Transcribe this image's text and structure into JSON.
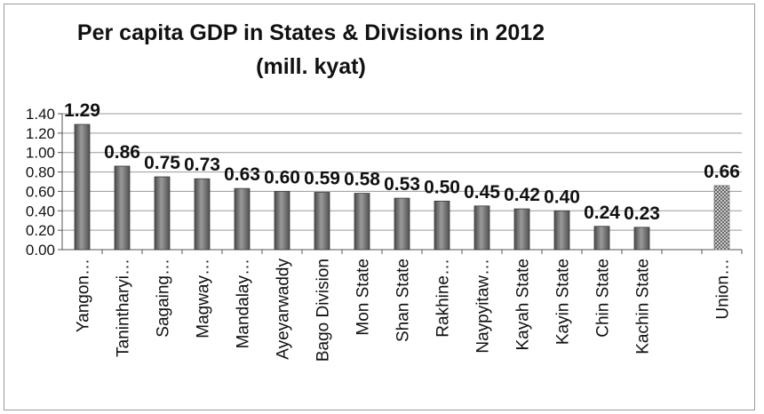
{
  "chart_data": {
    "type": "bar",
    "title": "Per capita GDP in States & Divisions  in 2012",
    "subtitle": "(mill. kyat)",
    "xlabel": "",
    "ylabel": "",
    "ylim": [
      0,
      1.4
    ],
    "yticks": [
      "0.00",
      "0.20",
      "0.40",
      "0.60",
      "0.80",
      "1.00",
      "1.20",
      "1.40"
    ],
    "grid": true,
    "legend": "none",
    "categories": [
      "Yangon…",
      "Tanintharyi…",
      "Sagaing…",
      "Magway…",
      "Mandalay…",
      "Ayeyarwaddy",
      "Bago Division",
      "Mon State",
      "Shan State",
      "Rakhine…",
      "Naypyitaw…",
      "Kayah State",
      "Kayin State",
      "Chin State",
      "Kachin State",
      "",
      "Union…"
    ],
    "values": [
      1.29,
      0.86,
      0.75,
      0.73,
      0.63,
      0.6,
      0.59,
      0.58,
      0.53,
      0.5,
      0.45,
      0.42,
      0.4,
      0.24,
      0.23,
      null,
      0.66
    ],
    "value_labels": [
      "1.29",
      "0.86",
      "0.75",
      "0.73",
      "0.63",
      "0.60",
      "0.59",
      "0.58",
      "0.53",
      "0.50",
      "0.45",
      "0.42",
      "0.40",
      "0.24",
      "0.23",
      "",
      "0.66"
    ],
    "bar_color": "#6f6f6f",
    "highlight_category": "Union…",
    "highlight_pattern": "crosshatch"
  }
}
